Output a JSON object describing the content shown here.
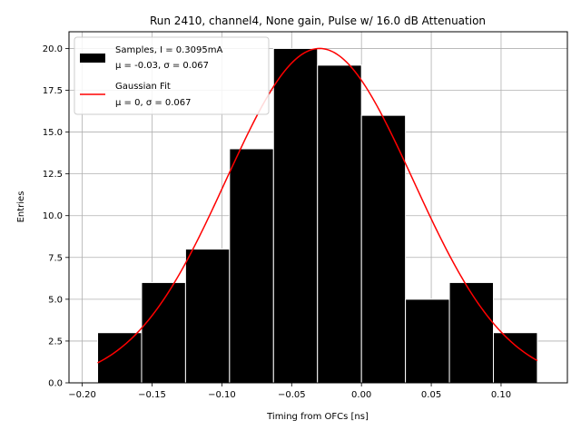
{
  "chart_data": {
    "type": "bar",
    "title": "Run 2410, channel4, None gain, Pulse w/ 16.0 dB Attenuation",
    "xlabel": "Timing from OFCs [ns]",
    "ylabel": "Entries",
    "xlim": [
      -0.2095,
      0.1475
    ],
    "ylim": [
      0,
      21
    ],
    "xticks": [
      -0.2,
      -0.15,
      -0.1,
      -0.05,
      0.0,
      0.05,
      0.1
    ],
    "xtick_labels": [
      "−0.20",
      "−0.15",
      "−0.10",
      "−0.05",
      "0.00",
      "0.05",
      "0.10"
    ],
    "yticks": [
      0,
      2.5,
      5,
      7.5,
      10,
      12.5,
      15,
      17.5,
      20
    ],
    "ytick_labels": [
      "0.0",
      "2.5",
      "5.0",
      "7.5",
      "10.0",
      "12.5",
      "15.0",
      "17.5",
      "20.0"
    ],
    "grid": true,
    "legend_position": "top-left",
    "histogram": {
      "bin_edges": [
        -0.189,
        -0.1575,
        -0.126,
        -0.0945,
        -0.063,
        -0.0315,
        0.0,
        0.0315,
        0.063,
        0.0945,
        0.126
      ],
      "counts": [
        3,
        6,
        8,
        14,
        20,
        19,
        16,
        5,
        6,
        3
      ],
      "color": "#000000",
      "edge_color": "#ffffff"
    },
    "fit": {
      "type": "gaussian",
      "amplitude": 20,
      "mean": -0.03,
      "sigma": 0.067,
      "x_range": [
        -0.189,
        0.126
      ],
      "color": "#ff0000"
    },
    "legend": [
      {
        "line1": "Samples, I = 0.3095mA",
        "line2": "μ = -0.03, σ = 0.067",
        "kind": "patch",
        "color": "#000000"
      },
      {
        "line1": "Gaussian Fit",
        "line2": "μ = 0, σ = 0.067",
        "kind": "line",
        "color": "#ff0000"
      }
    ]
  }
}
